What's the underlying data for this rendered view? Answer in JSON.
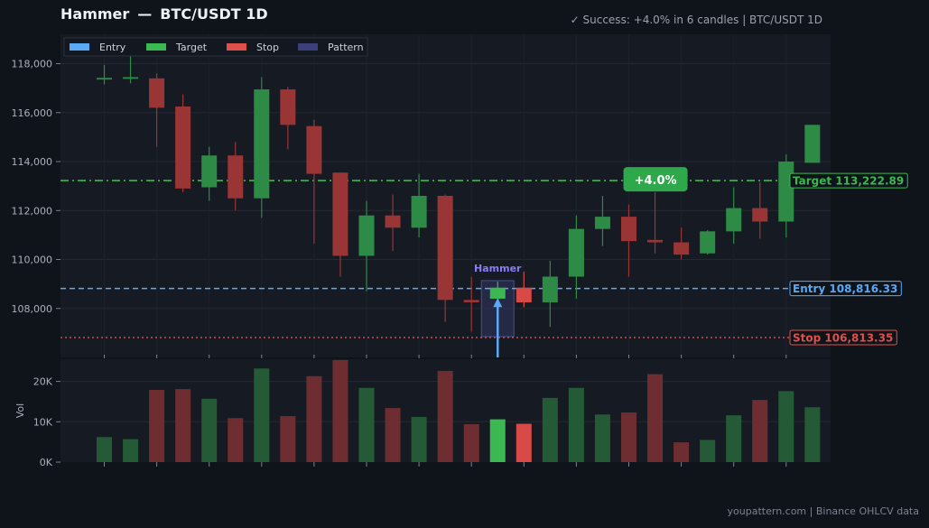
{
  "header": {
    "pattern_name": "Hammer",
    "separator": "—",
    "symbol": "BTC/USDT 1D",
    "status": "✓ Success: +4.0% in 6 candles  |  BTC/USDT 1D"
  },
  "footer": {
    "text": "youpattern.com  |  Binance OHLCV data"
  },
  "legend": [
    {
      "label": "Entry",
      "color": "#5aa9f5"
    },
    {
      "label": "Target",
      "color": "#3cb853"
    },
    {
      "label": "Stop",
      "color": "#e0504b"
    },
    {
      "label": "Pattern",
      "color": "#3b3f7a"
    }
  ],
  "colors": {
    "up": "#2e8b45",
    "down": "#9a3536",
    "up_highlight": "#3cb853",
    "down_highlight": "#d84a47",
    "entry": "#5aa9f5",
    "target": "#3cb853",
    "stop": "#e0504b",
    "pattern_label": "#8a7cf5",
    "success_badge": "#2ea84a"
  },
  "levels": {
    "entry": {
      "label": "Entry",
      "value": 108816.33,
      "text": "Entry  108,816.33"
    },
    "target": {
      "label": "Target",
      "value": 113222.89,
      "text": "Target  113,222.89"
    },
    "stop": {
      "label": "Stop",
      "value": 106813.35,
      "text": "Stop  106,813.35"
    }
  },
  "annotations": {
    "pattern_label": "Hammer",
    "success_badge": "+4.0%"
  },
  "chart_data": {
    "type": "candlestick",
    "title": "Hammer — BTC/USDT 1D",
    "price_axis": {
      "ylim": [
        106000,
        119200
      ],
      "ticks": [
        108000,
        110000,
        112000,
        114000,
        116000,
        118000
      ],
      "tick_labels": [
        "108,000",
        "110,000",
        "112,000",
        "114,000",
        "116,000",
        "118,000"
      ]
    },
    "volume_axis": {
      "label": "Vol",
      "ylim": [
        0,
        25500
      ],
      "ticks": [
        0,
        10000,
        20000
      ],
      "tick_labels": [
        "0K",
        "10K",
        "20K"
      ]
    },
    "grid": true,
    "legend_position": "top-left",
    "pattern_index": 15,
    "candles": [
      {
        "o": 117350,
        "h": 117950,
        "l": 117150,
        "c": 117420,
        "v": 6200
      },
      {
        "o": 117380,
        "h": 118600,
        "l": 117200,
        "c": 117450,
        "v": 5700
      },
      {
        "o": 117400,
        "h": 117600,
        "l": 114600,
        "c": 116200,
        "v": 17900
      },
      {
        "o": 116250,
        "h": 116750,
        "l": 112750,
        "c": 112900,
        "v": 18100
      },
      {
        "o": 112950,
        "h": 114600,
        "l": 112400,
        "c": 114250,
        "v": 15700
      },
      {
        "o": 114250,
        "h": 114800,
        "l": 112000,
        "c": 112500,
        "v": 10900
      },
      {
        "o": 112500,
        "h": 117450,
        "l": 111700,
        "c": 116950,
        "v": 23200
      },
      {
        "o": 116950,
        "h": 117050,
        "l": 114500,
        "c": 115500,
        "v": 11400
      },
      {
        "o": 115450,
        "h": 115700,
        "l": 110650,
        "c": 113500,
        "v": 21300
      },
      {
        "o": 113550,
        "h": 113550,
        "l": 109300,
        "c": 110150,
        "v": 25300
      },
      {
        "o": 110150,
        "h": 112400,
        "l": 108700,
        "c": 111800,
        "v": 18400
      },
      {
        "o": 111800,
        "h": 112650,
        "l": 110350,
        "c": 111300,
        "v": 13400
      },
      {
        "o": 111300,
        "h": 113500,
        "l": 110900,
        "c": 112600,
        "v": 11200
      },
      {
        "o": 112600,
        "h": 112650,
        "l": 107450,
        "c": 108350,
        "v": 22600
      },
      {
        "o": 108350,
        "h": 109300,
        "l": 107050,
        "c": 108250,
        "v": 9400
      },
      {
        "o": 108400,
        "h": 109100,
        "l": 108350,
        "c": 108850,
        "v": 10600
      },
      {
        "o": 108850,
        "h": 109500,
        "l": 108050,
        "c": 108250,
        "v": 9500
      },
      {
        "o": 108250,
        "h": 109950,
        "l": 107250,
        "c": 109300,
        "v": 15900
      },
      {
        "o": 109300,
        "h": 111800,
        "l": 108400,
        "c": 111250,
        "v": 18400
      },
      {
        "o": 111250,
        "h": 112600,
        "l": 110550,
        "c": 111750,
        "v": 11800
      },
      {
        "o": 111750,
        "h": 112250,
        "l": 109300,
        "c": 110750,
        "v": 12300
      },
      {
        "o": 110800,
        "h": 112750,
        "l": 110250,
        "c": 110700,
        "v": 21800
      },
      {
        "o": 110700,
        "h": 111300,
        "l": 110000,
        "c": 110200,
        "v": 4900
      },
      {
        "o": 110250,
        "h": 111200,
        "l": 110200,
        "c": 111150,
        "v": 5500
      },
      {
        "o": 111150,
        "h": 112950,
        "l": 110650,
        "c": 112100,
        "v": 11600
      },
      {
        "o": 112100,
        "h": 113150,
        "l": 110850,
        "c": 111550,
        "v": 15400
      },
      {
        "o": 111550,
        "h": 114300,
        "l": 110900,
        "c": 114000,
        "v": 17600
      },
      {
        "o": 113950,
        "h": 115500,
        "l": 113950,
        "c": 115500,
        "v": 13600
      }
    ]
  }
}
